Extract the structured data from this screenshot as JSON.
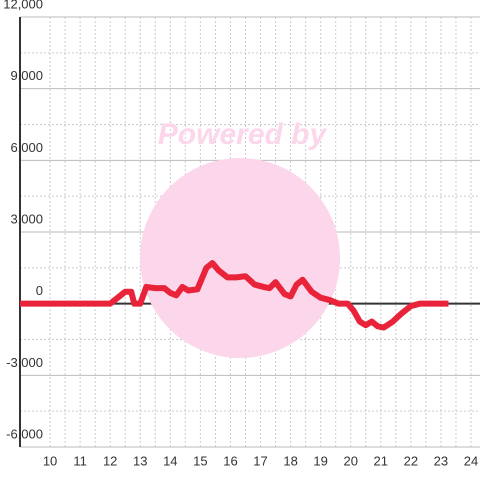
{
  "chart_data": {
    "type": "line",
    "watermark": "Powered by",
    "x": [
      9,
      12,
      12.3,
      12.5,
      12.7,
      12.8,
      13.0,
      13.2,
      13.5,
      13.8,
      14.0,
      14.2,
      14.4,
      14.6,
      14.9,
      15.2,
      15.4,
      15.6,
      15.9,
      16.2,
      16.5,
      16.8,
      17.1,
      17.3,
      17.5,
      17.8,
      18.0,
      18.2,
      18.4,
      18.7,
      19.0,
      19.3,
      19.6,
      19.9,
      20.1,
      20.3,
      20.5,
      20.7,
      20.9,
      21.1,
      21.4,
      21.7,
      22.0,
      22.3,
      22.7,
      23.25
    ],
    "series": [
      {
        "color": "#e8233a",
        "values": [
          0,
          0,
          300,
          500,
          500,
          0,
          0,
          700,
          650,
          650,
          450,
          350,
          700,
          550,
          600,
          1500,
          1700,
          1400,
          1100,
          1100,
          1150,
          800,
          700,
          650,
          900,
          400,
          300,
          800,
          1000,
          500,
          250,
          150,
          0,
          0,
          -300,
          -750,
          -900,
          -750,
          -950,
          -1000,
          -750,
          -400,
          -100,
          0,
          0,
          0
        ]
      }
    ],
    "xlim": [
      9,
      24.3
    ],
    "xticks": [
      10,
      11,
      12,
      13,
      14,
      15,
      16,
      17,
      18,
      19,
      20,
      21,
      22,
      23,
      24
    ],
    "ylim": [
      -6000,
      12000
    ],
    "yticks": [
      {
        "value": -6000,
        "label": "-6,000"
      },
      {
        "value": -3000,
        "label": "-3,000"
      },
      0,
      {
        "value": 3000,
        "label": "3,000"
      },
      {
        "value": 6000,
        "label": "6,000"
      },
      {
        "value": 9000,
        "label": "9,000"
      },
      {
        "value": 12000,
        "label": "12,000"
      }
    ],
    "grid": true
  }
}
